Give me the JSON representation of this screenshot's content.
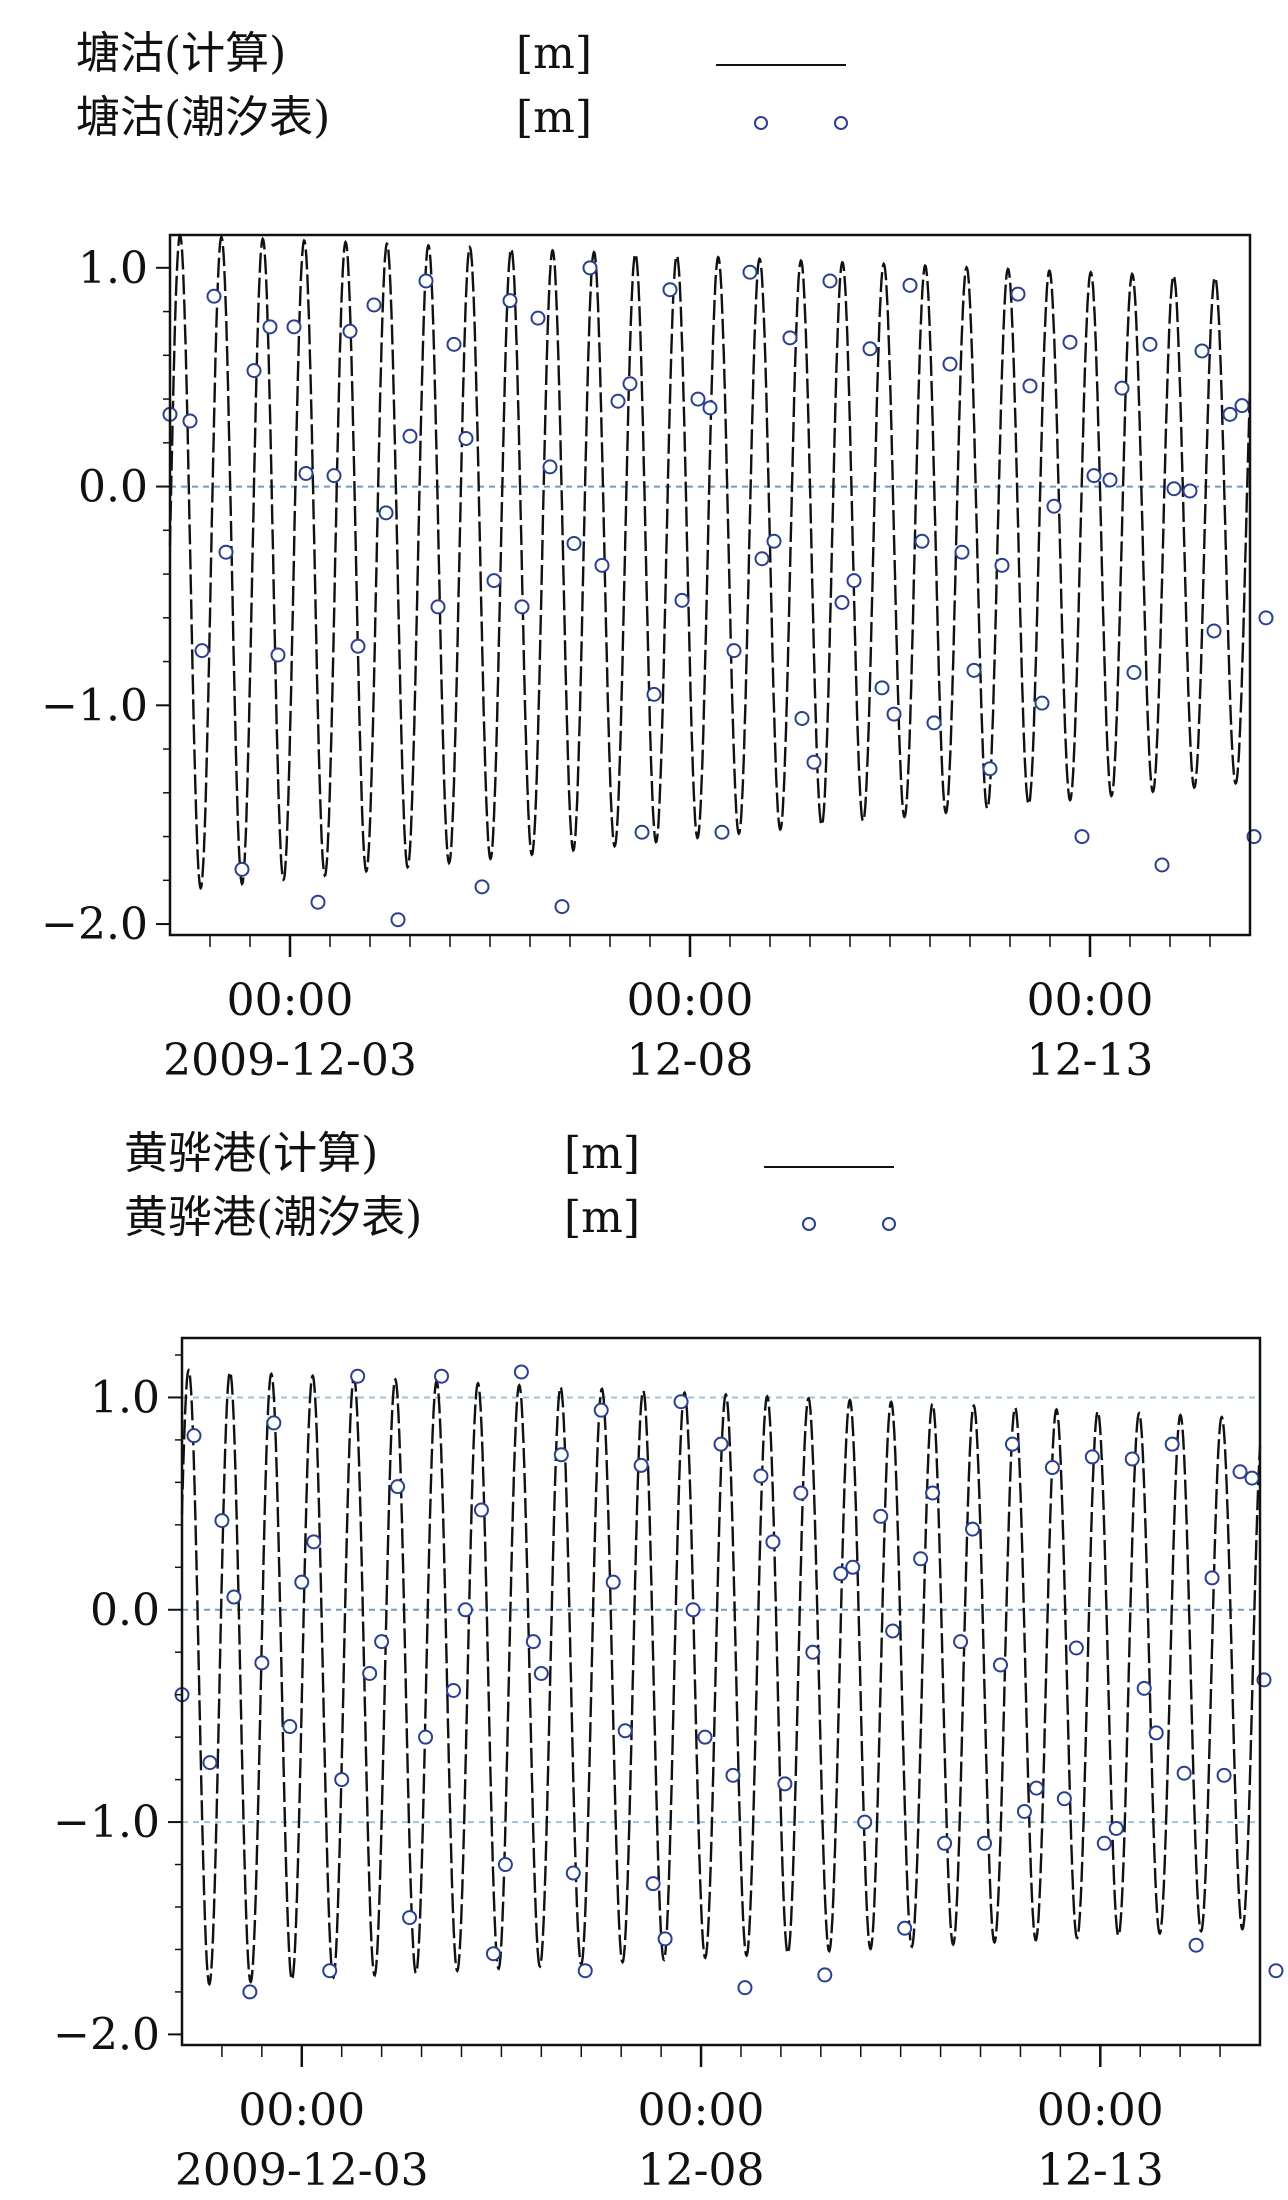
{
  "chart_data": [
    {
      "type": "line",
      "legend": [
        {
          "name": "塘沽(计算)",
          "unit": "[m]",
          "style": "line"
        },
        {
          "name": "塘沽(潮汐表)",
          "unit": "[m]",
          "style": "marker"
        }
      ],
      "x": {
        "start": "2009-12-01 12:00",
        "end": "2009-12-15 00:00",
        "unit": "day"
      },
      "x_ticks": [
        {
          "time": "2009-12-03 00:00",
          "label_time": "00:00",
          "label_date": "2009-12-03"
        },
        {
          "time": "2009-12-08 00:00",
          "label_time": "00:00",
          "label_date": "12-08"
        },
        {
          "time": "2009-12-13 00:00",
          "label_time": "00:00",
          "label_date": "12-13"
        }
      ],
      "ylim": [
        -2.05,
        1.15
      ],
      "y_ticks": [
        {
          "value": 1.0,
          "label": "1.0"
        },
        {
          "value": 0.0,
          "label": "0.0"
        },
        {
          "value": -1.0,
          "label": "-1.0"
        },
        {
          "value": -2.0,
          "label": "-2.0"
        }
      ],
      "reference_lines": [
        0.0
      ],
      "series": [
        {
          "style": "line",
          "color": "#111111",
          "model": {
            "period_hours": 12.42,
            "amplitude_start": 1.5,
            "amplitude_end": 1.15,
            "mean_start": -0.35,
            "mean_end": -0.2,
            "phase_hours": 3.0
          }
        },
        {
          "style": "marker",
          "color": "#2a3f8f",
          "points": [
            [
              0.0,
              0.33
            ],
            [
              0.25,
              0.3
            ],
            [
              0.4,
              -0.75
            ],
            [
              0.55,
              0.87
            ],
            [
              0.7,
              -0.3
            ],
            [
              0.9,
              -1.75
            ],
            [
              1.05,
              0.53
            ],
            [
              1.25,
              0.73
            ],
            [
              1.35,
              -0.77
            ],
            [
              1.55,
              0.73
            ],
            [
              1.7,
              0.06
            ],
            [
              1.85,
              -1.9
            ],
            [
              2.05,
              0.05
            ],
            [
              2.25,
              0.71
            ],
            [
              2.35,
              -0.73
            ],
            [
              2.55,
              0.83
            ],
            [
              2.7,
              -0.12
            ],
            [
              2.85,
              -1.98
            ],
            [
              3.0,
              0.23
            ],
            [
              3.2,
              0.94
            ],
            [
              3.35,
              -0.55
            ],
            [
              3.55,
              0.65
            ],
            [
              3.7,
              0.22
            ],
            [
              3.9,
              -1.83
            ],
            [
              4.05,
              -0.43
            ],
            [
              4.25,
              0.85
            ],
            [
              4.4,
              -0.55
            ],
            [
              4.6,
              0.77
            ],
            [
              4.75,
              0.09
            ],
            [
              4.9,
              -1.92
            ],
            [
              5.05,
              -0.26
            ],
            [
              5.25,
              1.0
            ],
            [
              5.4,
              -0.36
            ],
            [
              5.6,
              0.39
            ],
            [
              5.75,
              0.47
            ],
            [
              5.9,
              -1.58
            ],
            [
              6.05,
              -0.95
            ],
            [
              6.25,
              0.9
            ],
            [
              6.4,
              -0.52
            ],
            [
              6.6,
              0.4
            ],
            [
              6.75,
              0.36
            ],
            [
              6.9,
              -1.58
            ],
            [
              7.05,
              -0.75
            ],
            [
              7.25,
              0.98
            ],
            [
              7.4,
              -0.33
            ],
            [
              7.55,
              -0.25
            ],
            [
              7.75,
              0.68
            ],
            [
              7.9,
              -1.06
            ],
            [
              8.05,
              -1.26
            ],
            [
              8.25,
              0.94
            ],
            [
              8.4,
              -0.53
            ],
            [
              8.55,
              -0.43
            ],
            [
              8.75,
              0.63
            ],
            [
              8.9,
              -0.92
            ],
            [
              9.05,
              -1.04
            ],
            [
              9.25,
              0.92
            ],
            [
              9.4,
              -0.25
            ],
            [
              9.55,
              -1.08
            ],
            [
              9.75,
              0.56
            ],
            [
              9.9,
              -0.3
            ],
            [
              10.05,
              -0.84
            ],
            [
              10.25,
              -1.29
            ],
            [
              10.4,
              -0.36
            ],
            [
              10.6,
              0.88
            ],
            [
              10.75,
              0.46
            ],
            [
              10.9,
              -0.99
            ],
            [
              11.05,
              -0.09
            ],
            [
              11.25,
              0.66
            ],
            [
              11.4,
              -1.6
            ],
            [
              11.55,
              0.05
            ],
            [
              11.75,
              0.03
            ],
            [
              11.9,
              0.45
            ],
            [
              12.05,
              -0.85
            ],
            [
              12.25,
              0.65
            ],
            [
              12.4,
              -1.73
            ],
            [
              12.55,
              -0.01
            ],
            [
              12.75,
              -0.02
            ],
            [
              12.9,
              0.62
            ],
            [
              13.05,
              -0.66
            ],
            [
              13.25,
              0.33
            ],
            [
              13.4,
              0.37
            ],
            [
              13.55,
              -1.6
            ],
            [
              13.7,
              -0.6
            ]
          ]
        }
      ]
    },
    {
      "type": "line",
      "legend": [
        {
          "name": "黄骅港(计算)",
          "unit": "[m]",
          "style": "line"
        },
        {
          "name": "黄骅港(潮汐表)",
          "unit": "[m]",
          "style": "marker"
        }
      ],
      "x": {
        "start": "2009-12-01 12:00",
        "end": "2009-12-15 00:00",
        "unit": "day"
      },
      "x_ticks": [
        {
          "time": "2009-12-03 00:00",
          "label_time": "00:00",
          "label_date": "2009-12-03"
        },
        {
          "time": "2009-12-08 00:00",
          "label_time": "00:00",
          "label_date": "12-08"
        },
        {
          "time": "2009-12-13 00:00",
          "label_time": "00:00",
          "label_date": "12-13"
        }
      ],
      "ylim": [
        -2.05,
        1.28
      ],
      "y_ticks": [
        {
          "value": 1.0,
          "label": "1.0"
        },
        {
          "value": 0.0,
          "label": "0.0"
        },
        {
          "value": -1.0,
          "label": "-1.0"
        },
        {
          "value": -2.0,
          "label": "-2.0"
        }
      ],
      "reference_lines": [
        1.0,
        0.0,
        -1.0
      ],
      "series": [
        {
          "style": "line",
          "color": "#111111",
          "model": {
            "period_hours": 12.42,
            "amplitude_start": 1.45,
            "amplitude_end": 1.2,
            "mean_start": -0.32,
            "mean_end": -0.3,
            "phase_hours": 2.0
          }
        },
        {
          "style": "marker",
          "color": "#2a3f8f",
          "points": [
            [
              0.0,
              -0.4
            ],
            [
              0.15,
              0.82
            ],
            [
              0.35,
              -0.72
            ],
            [
              0.5,
              0.42
            ],
            [
              0.65,
              0.06
            ],
            [
              0.85,
              -1.8
            ],
            [
              1.0,
              -0.25
            ],
            [
              1.15,
              0.88
            ],
            [
              1.35,
              -0.55
            ],
            [
              1.5,
              0.13
            ],
            [
              1.65,
              0.32
            ],
            [
              1.85,
              -1.7
            ],
            [
              2.0,
              -0.8
            ],
            [
              2.2,
              1.1
            ],
            [
              2.35,
              -0.3
            ],
            [
              2.5,
              -0.15
            ],
            [
              2.7,
              0.58
            ],
            [
              2.85,
              -1.45
            ],
            [
              3.05,
              -0.6
            ],
            [
              3.25,
              1.1
            ],
            [
              3.4,
              -0.38
            ],
            [
              3.55,
              0.0
            ],
            [
              3.75,
              0.47
            ],
            [
              3.9,
              -1.62
            ],
            [
              4.05,
              -1.2
            ],
            [
              4.25,
              1.12
            ],
            [
              4.4,
              -0.15
            ],
            [
              4.5,
              -0.3
            ],
            [
              4.75,
              0.73
            ],
            [
              4.9,
              -1.24
            ],
            [
              5.05,
              -1.7
            ],
            [
              5.25,
              0.94
            ],
            [
              5.4,
              0.13
            ],
            [
              5.55,
              -0.57
            ],
            [
              5.75,
              0.68
            ],
            [
              5.9,
              -1.29
            ],
            [
              6.05,
              -1.55
            ],
            [
              6.25,
              0.98
            ],
            [
              6.4,
              0.0
            ],
            [
              6.55,
              -0.6
            ],
            [
              6.75,
              0.78
            ],
            [
              6.9,
              -0.78
            ],
            [
              7.05,
              -1.78
            ],
            [
              7.25,
              0.63
            ],
            [
              7.4,
              0.32
            ],
            [
              7.55,
              -0.82
            ],
            [
              7.75,
              0.55
            ],
            [
              7.9,
              -0.2
            ],
            [
              8.05,
              -1.72
            ],
            [
              8.25,
              0.17
            ],
            [
              8.4,
              0.2
            ],
            [
              8.55,
              -1.0
            ],
            [
              8.75,
              0.44
            ],
            [
              8.9,
              -0.1
            ],
            [
              9.05,
              -1.5
            ],
            [
              9.25,
              0.24
            ],
            [
              9.4,
              0.55
            ],
            [
              9.55,
              -1.1
            ],
            [
              9.75,
              -0.15
            ],
            [
              9.9,
              0.38
            ],
            [
              10.05,
              -1.1
            ],
            [
              10.25,
              -0.26
            ],
            [
              10.4,
              0.78
            ],
            [
              10.55,
              -0.95
            ],
            [
              10.7,
              -0.84
            ],
            [
              10.9,
              0.67
            ],
            [
              11.05,
              -0.89
            ],
            [
              11.2,
              -0.18
            ],
            [
              11.4,
              0.72
            ],
            [
              11.55,
              -1.1
            ],
            [
              11.7,
              -1.03
            ],
            [
              11.9,
              0.71
            ],
            [
              12.05,
              -0.37
            ],
            [
              12.2,
              -0.58
            ],
            [
              12.4,
              0.78
            ],
            [
              12.55,
              -0.77
            ],
            [
              12.7,
              -1.58
            ],
            [
              12.9,
              0.15
            ],
            [
              13.05,
              -0.78
            ],
            [
              13.25,
              0.65
            ],
            [
              13.4,
              0.62
            ],
            [
              13.55,
              -0.33
            ],
            [
              13.7,
              -1.7
            ]
          ]
        }
      ]
    }
  ]
}
